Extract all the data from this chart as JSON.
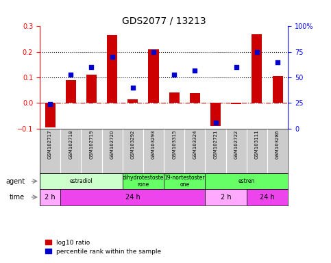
{
  "title": "GDS2077 / 13213",
  "samples": [
    "GSM102717",
    "GSM102718",
    "GSM102719",
    "GSM102720",
    "GSM103292",
    "GSM103293",
    "GSM103315",
    "GSM103324",
    "GSM102721",
    "GSM102722",
    "GSM103111",
    "GSM103286"
  ],
  "log10_ratio": [
    -0.095,
    0.09,
    0.11,
    0.265,
    0.015,
    0.21,
    0.04,
    0.038,
    -0.09,
    -0.005,
    0.27,
    0.105
  ],
  "percentile_rank": [
    24,
    53,
    60,
    70,
    40,
    75,
    53,
    57,
    6,
    60,
    75,
    65
  ],
  "bar_color": "#cc0000",
  "scatter_color": "#0000cc",
  "ylim_left": [
    -0.1,
    0.3
  ],
  "ylim_right": [
    0,
    100
  ],
  "yticks_left": [
    -0.1,
    0.0,
    0.1,
    0.2,
    0.3
  ],
  "yticks_right": [
    0,
    25,
    50,
    75,
    100
  ],
  "ytick_labels_right": [
    "0",
    "25",
    "50",
    "75",
    "100%"
  ],
  "hline_dotted": [
    0.1,
    0.2
  ],
  "zero_line_color": "#cc0000",
  "dotted_line_color": "#000000",
  "agent_groups": [
    {
      "label": "estradiol",
      "start": 0,
      "end": 4,
      "color": "#ccffcc"
    },
    {
      "label": "dihydrotestoste\nrone",
      "start": 4,
      "end": 6,
      "color": "#66ff66"
    },
    {
      "label": "19-nortestoster\none",
      "start": 6,
      "end": 8,
      "color": "#66ff66"
    },
    {
      "label": "estren",
      "start": 8,
      "end": 12,
      "color": "#66ff66"
    }
  ],
  "time_groups": [
    {
      "label": "2 h",
      "start": 0,
      "end": 1,
      "color": "#ffaaff"
    },
    {
      "label": "24 h",
      "start": 1,
      "end": 8,
      "color": "#ee44ee"
    },
    {
      "label": "2 h",
      "start": 8,
      "end": 10,
      "color": "#ffaaff"
    },
    {
      "label": "24 h",
      "start": 10,
      "end": 12,
      "color": "#ee44ee"
    }
  ],
  "xlabel_agent": "agent",
  "xlabel_time": "time",
  "legend_bar_label": "log10 ratio",
  "legend_scatter_label": "percentile rank within the sample",
  "background_color": "#ffffff",
  "title_fontsize": 10,
  "tick_fontsize": 7,
  "bar_width": 0.5,
  "sample_bg": "#cccccc"
}
